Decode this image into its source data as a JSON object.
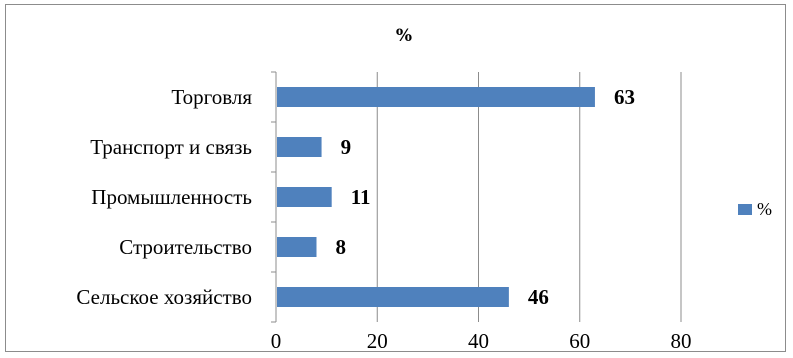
{
  "chart_data": {
    "type": "bar",
    "orientation": "horizontal",
    "title": "%",
    "categories": [
      "Торговля",
      "Транспорт и связь",
      "Промышленность",
      "Строительство",
      "Сельское хозяйство"
    ],
    "series": [
      {
        "name": "%",
        "values": [
          63,
          9,
          11,
          8,
          46
        ],
        "color": "#4f81bd"
      }
    ],
    "xlim": [
      0,
      80
    ],
    "xticks": [
      0,
      20,
      40,
      60,
      80
    ],
    "xlabel": "",
    "ylabel": "",
    "grid": true,
    "legend_position": "right",
    "data_labels": true
  }
}
